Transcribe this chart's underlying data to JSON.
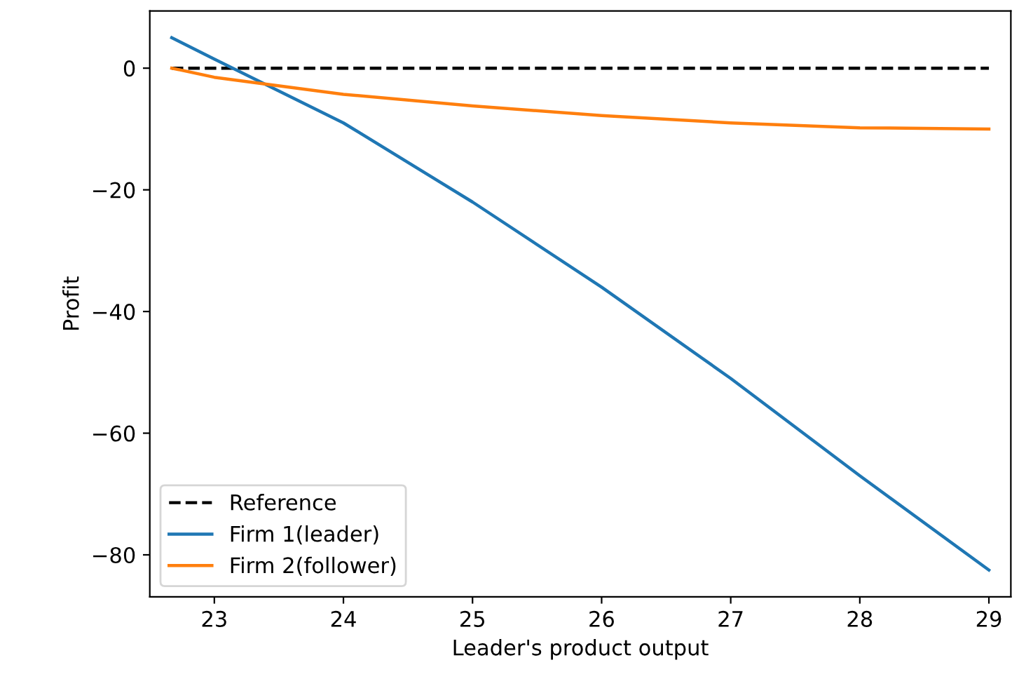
{
  "chart_data": {
    "type": "line",
    "xlabel": "Leader's product output",
    "ylabel": "Profit",
    "xlim": [
      22.5,
      29.17
    ],
    "ylim": [
      -86.9,
      9.4
    ],
    "xticks": [
      23,
      24,
      25,
      26,
      27,
      28,
      29
    ],
    "yticks": [
      0,
      -20,
      -40,
      -60,
      -80
    ],
    "legend": "bottom left",
    "grid": false,
    "series": [
      {
        "name": "Reference",
        "color": "#000000",
        "line_style": "dashed",
        "x": [
          22.67,
          29
        ],
        "values": [
          0,
          0
        ]
      },
      {
        "name": "Firm 1(leader)",
        "color": "#1f77b4",
        "line_style": "solid",
        "x": [
          22.67,
          23,
          24,
          25,
          26,
          27,
          28,
          29
        ],
        "values": [
          5,
          1.5,
          -9,
          -22,
          -36,
          -51,
          -67,
          -82.5
        ]
      },
      {
        "name": "Firm 2(follower)",
        "color": "#ff7f0e",
        "line_style": "solid",
        "x": [
          22.67,
          23,
          24,
          25,
          26,
          27,
          28,
          29
        ],
        "values": [
          0,
          -1.5,
          -4.3,
          -6.2,
          -7.8,
          -9,
          -9.8,
          -10
        ]
      }
    ]
  }
}
